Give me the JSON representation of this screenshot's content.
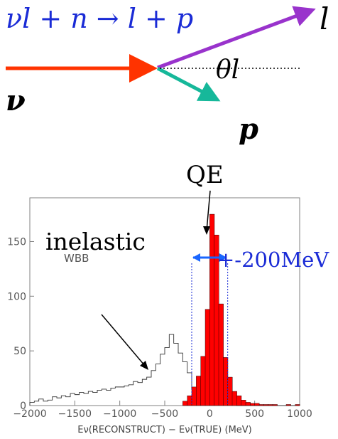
{
  "diagram": {
    "equation": "νl + n → l + p",
    "label_nu": "ν",
    "label_lepton": "l",
    "label_proton": "p",
    "label_theta": "θl",
    "colors": {
      "neutrino": "#ff3300",
      "lepton": "#9933cc",
      "proton": "#16b89a",
      "equation": "#1a2bd6"
    }
  },
  "chart_data": {
    "type": "bar",
    "subtype": "histogram",
    "xlabel": "Eν(RECONSTRUCT) − Eν(TRUE) (MeV)",
    "ylabel": "",
    "xlim": [
      -2000,
      1000
    ],
    "ylim": [
      0,
      190
    ],
    "xticks": [
      -2000,
      -1500,
      -1000,
      -500,
      0,
      500,
      1000
    ],
    "yticks": [
      0,
      50,
      100,
      150
    ],
    "bin_width": 50,
    "tag": "WBB",
    "annotations": {
      "qe": "QE",
      "inelastic": "inelastic",
      "window": "+-200MeV"
    },
    "window_mev": [
      -200,
      200
    ],
    "series": [
      {
        "role": "outline",
        "bin_start": -2000,
        "values": [
          3,
          4,
          6,
          4,
          5,
          8,
          7,
          9,
          8,
          11,
          10,
          12,
          11,
          13,
          12,
          14,
          15,
          14,
          16,
          17,
          17,
          18,
          19,
          22,
          21,
          24,
          26,
          32,
          38,
          47,
          53,
          65,
          57,
          48,
          40,
          30,
          15,
          6,
          3,
          2,
          2,
          1,
          1,
          1,
          1,
          1,
          0,
          0,
          0,
          0,
          0,
          0,
          0,
          0,
          0,
          0,
          0,
          0,
          0,
          0
        ]
      },
      {
        "role": "filled",
        "color": "#ff0000",
        "bin_start": -300,
        "values": [
          4,
          9,
          17,
          27,
          45,
          88,
          175,
          156,
          93,
          44,
          26,
          13,
          9,
          5,
          3,
          2,
          2,
          1,
          1,
          1,
          1,
          0,
          0,
          1,
          0,
          1
        ]
      }
    ]
  }
}
